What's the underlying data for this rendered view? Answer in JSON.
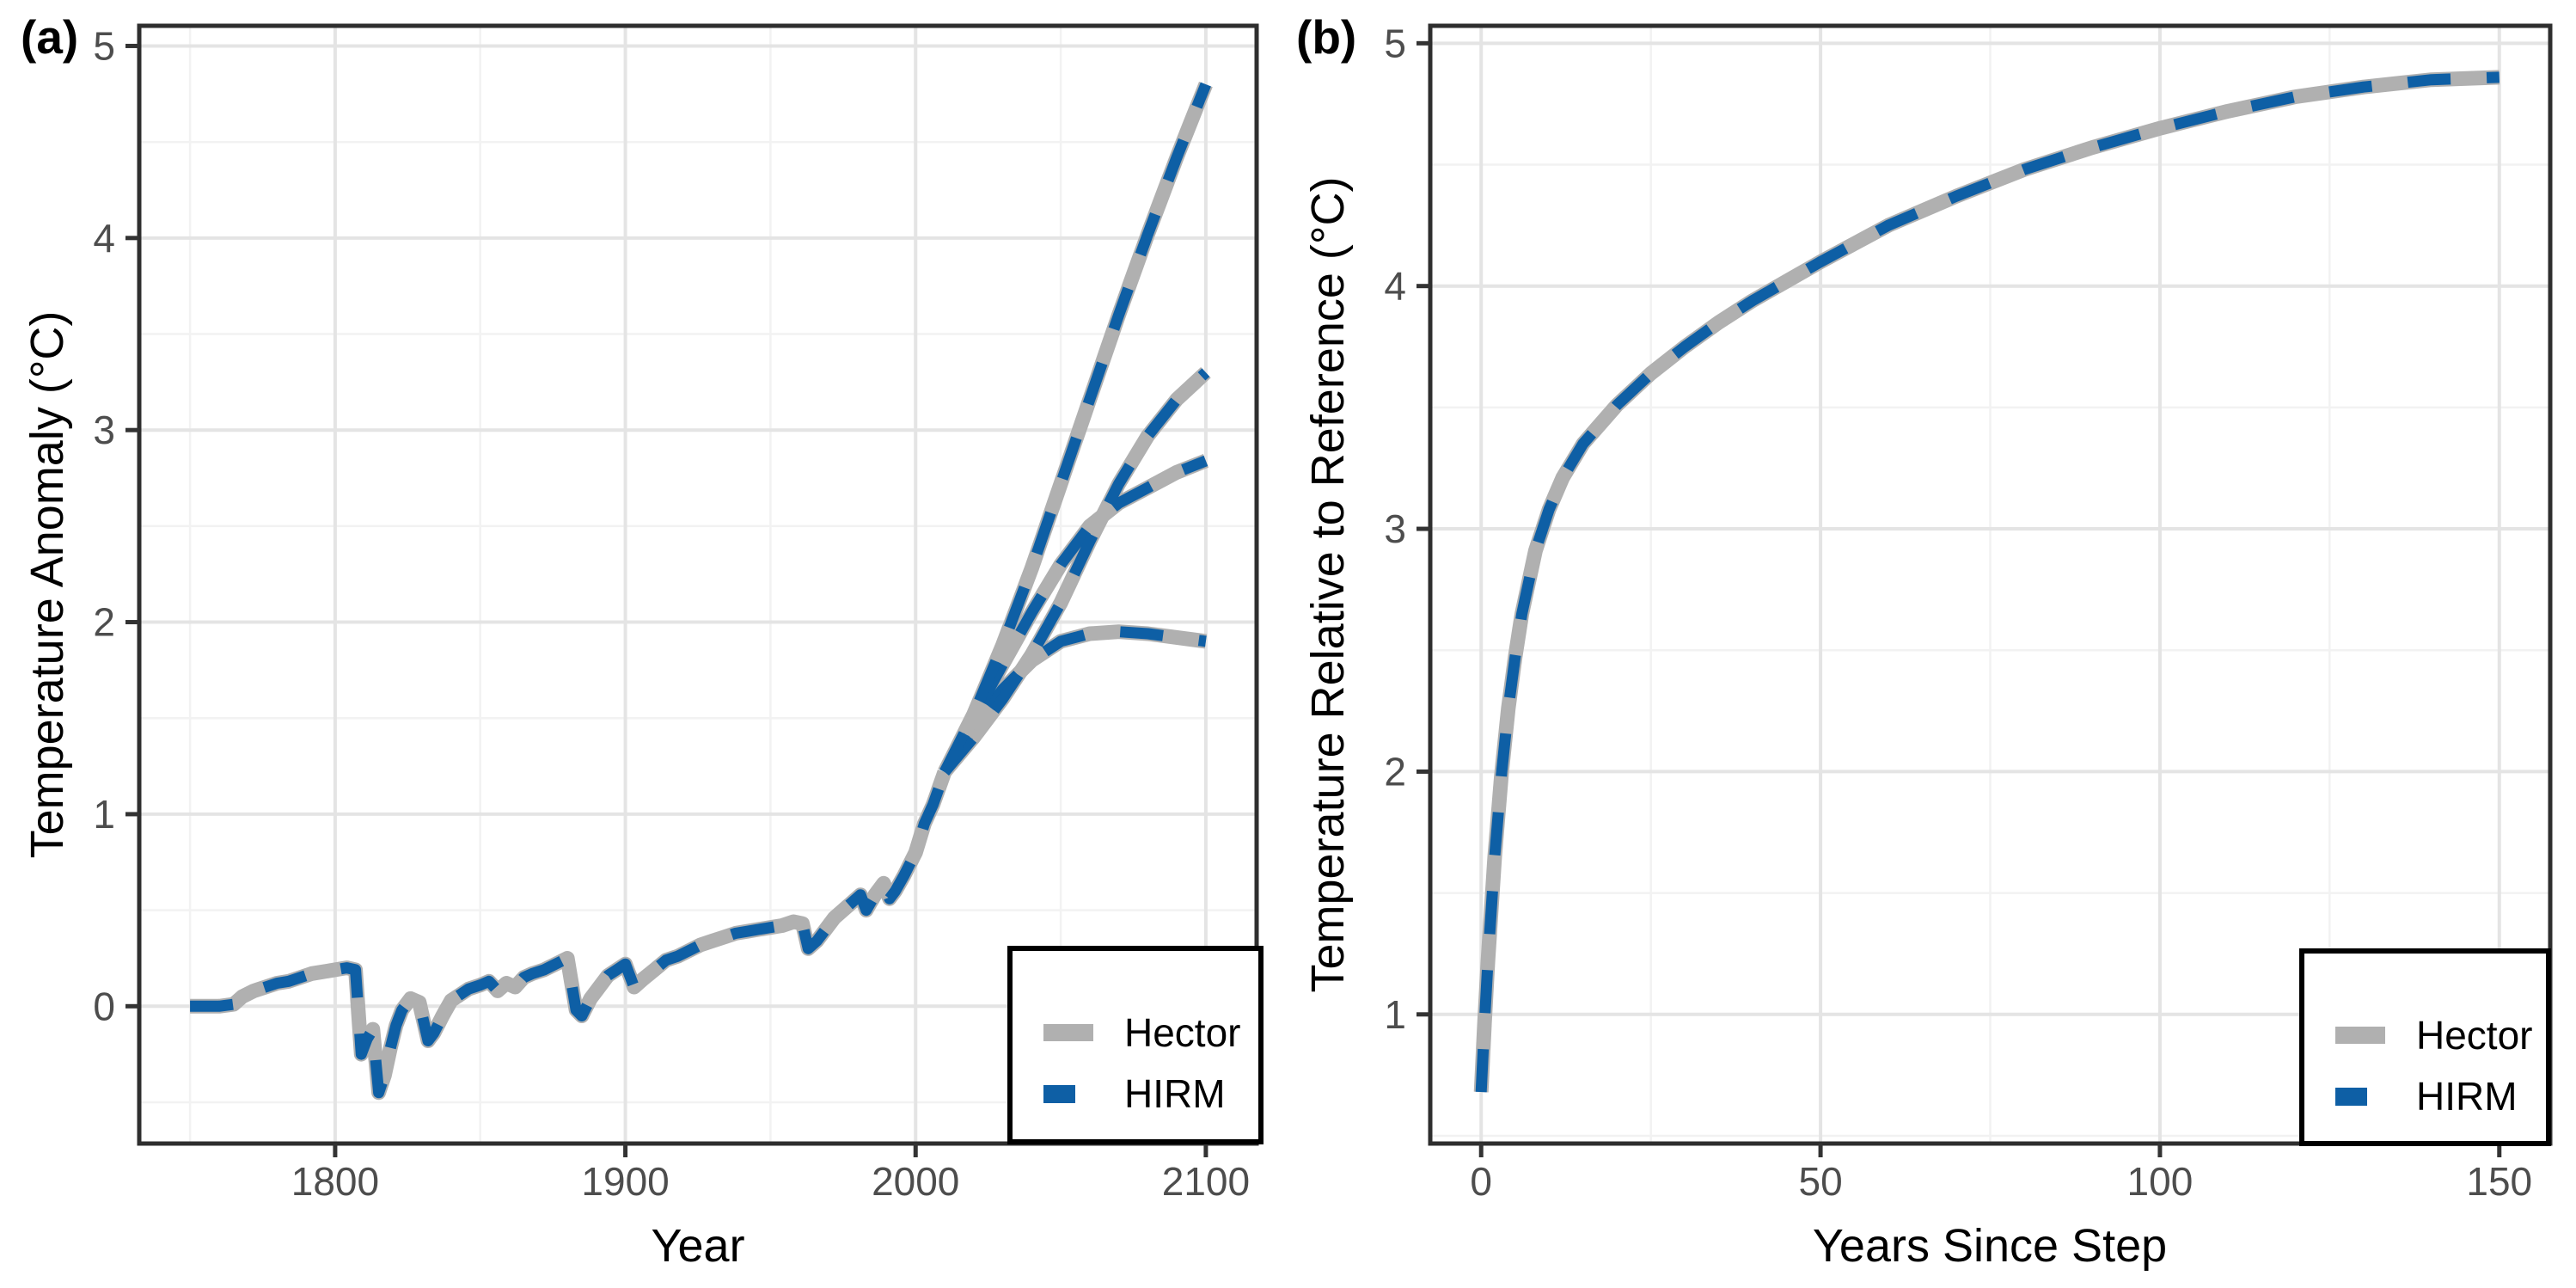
{
  "colors": {
    "background": "#ffffff",
    "hector": "#b0b0b0",
    "hirm": "#0e5fa5",
    "grid_major": "#e4e4e4",
    "grid_minor": "#f2f2f2",
    "panel_border": "#2e2e2e",
    "tick": "#333333",
    "tick_label": "#4d4d4d",
    "axis_title": "#000000",
    "legend_border": "#000000",
    "legend_background": "#ffffff"
  },
  "legend": {
    "items": [
      {
        "label": "Hector",
        "color": "#b0b0b0",
        "style": "solid"
      },
      {
        "label": "HIRM",
        "color": "#0e5fa5",
        "style": "dashed"
      }
    ],
    "position": "bottom-right"
  },
  "chart_data": [
    {
      "type": "line",
      "panel_tag": "(a)",
      "title": "",
      "xlabel": "Year",
      "ylabel": "Temperature Anomaly (°C)",
      "xlim": [
        1732.5,
        2117.5
      ],
      "ylim": [
        -0.715,
        5.105
      ],
      "x_ticks": [
        1800,
        1900,
        2000,
        2100
      ],
      "x_minor": [
        1750,
        1850,
        1950,
        2050
      ],
      "y_ticks": [
        0,
        1,
        2,
        3,
        4,
        5
      ],
      "y_minor": [
        -0.5,
        0.5,
        1.5,
        2.5,
        3.5,
        4.5
      ],
      "grid": true,
      "legend_position": "bottom-right",
      "models": [
        {
          "name": "Hector",
          "style": "solid"
        },
        {
          "name": "HIRM",
          "style": "dashed"
        }
      ],
      "series": [
        {
          "name": "history",
          "x": [
            1750,
            1755,
            1760,
            1765,
            1768,
            1772,
            1776,
            1780,
            1784,
            1788,
            1792,
            1796,
            1800,
            1804,
            1807,
            1809,
            1811,
            1813,
            1815,
            1817,
            1819,
            1821,
            1823,
            1826,
            1829,
            1832,
            1834,
            1837,
            1840,
            1843,
            1846,
            1850,
            1853,
            1856,
            1859,
            1862,
            1865,
            1868,
            1872,
            1876,
            1880,
            1883,
            1885,
            1888,
            1891,
            1894,
            1897,
            1900,
            1903,
            1906,
            1910,
            1914,
            1918,
            1922,
            1926,
            1930,
            1934,
            1938,
            1942,
            1946,
            1950,
            1954,
            1958,
            1961,
            1963,
            1966,
            1969,
            1972,
            1975,
            1978,
            1981,
            1983,
            1986,
            1989,
            1991,
            1993,
            1996,
            2000,
            2003,
            2006,
            2010
          ],
          "y": [
            0,
            0,
            0,
            0.01,
            0.05,
            0.08,
            0.1,
            0.12,
            0.13,
            0.15,
            0.17,
            0.18,
            0.19,
            0.2,
            0.19,
            -0.25,
            -0.17,
            -0.12,
            -0.45,
            -0.36,
            -0.22,
            -0.1,
            -0.02,
            0.04,
            0.02,
            -0.18,
            -0.14,
            -0.05,
            0.03,
            0.06,
            0.09,
            0.11,
            0.13,
            0.08,
            0.12,
            0.1,
            0.15,
            0.17,
            0.19,
            0.22,
            0.25,
            -0.02,
            -0.05,
            0.04,
            0.1,
            0.16,
            0.19,
            0.22,
            0.1,
            0.14,
            0.19,
            0.24,
            0.26,
            0.29,
            0.32,
            0.34,
            0.36,
            0.38,
            0.39,
            0.4,
            0.41,
            0.42,
            0.44,
            0.43,
            0.3,
            0.34,
            0.4,
            0.46,
            0.5,
            0.54,
            0.58,
            0.5,
            0.58,
            0.64,
            0.56,
            0.6,
            0.68,
            0.8,
            0.95,
            1.05,
            1.22
          ]
        },
        {
          "name": "branch_low",
          "x": [
            2010,
            2020,
            2030,
            2040,
            2050,
            2060,
            2070,
            2080,
            2090,
            2100
          ],
          "y": [
            1.22,
            1.45,
            1.65,
            1.8,
            1.9,
            1.94,
            1.95,
            1.94,
            1.92,
            1.9
          ]
        },
        {
          "name": "branch_mid_low",
          "x": [
            2010,
            2020,
            2030,
            2040,
            2050,
            2060,
            2070,
            2080,
            2090,
            2100
          ],
          "y": [
            1.22,
            1.5,
            1.78,
            2.05,
            2.3,
            2.5,
            2.62,
            2.7,
            2.78,
            2.84
          ]
        },
        {
          "name": "branch_mid_high",
          "x": [
            2010,
            2020,
            2030,
            2040,
            2050,
            2060,
            2070,
            2080,
            2090,
            2100
          ],
          "y": [
            1.22,
            1.4,
            1.6,
            1.83,
            2.1,
            2.42,
            2.72,
            2.97,
            3.16,
            3.3
          ]
        },
        {
          "name": "branch_high",
          "x": [
            2010,
            2020,
            2030,
            2040,
            2050,
            2060,
            2070,
            2080,
            2090,
            2100
          ],
          "y": [
            1.22,
            1.52,
            1.88,
            2.28,
            2.72,
            3.16,
            3.6,
            4.02,
            4.42,
            4.8
          ]
        }
      ]
    },
    {
      "type": "line",
      "panel_tag": "(b)",
      "title": "",
      "xlabel": "Years Since Step",
      "ylabel": "Temperature Relative to Reference (°C)",
      "xlim": [
        -7.5,
        157.5
      ],
      "ylim": [
        0.468,
        5.072
      ],
      "x_ticks": [
        0,
        50,
        100,
        150
      ],
      "x_minor": [
        25,
        75,
        125
      ],
      "y_ticks": [
        1,
        2,
        3,
        4,
        5
      ],
      "y_minor": [
        0.5,
        1.5,
        2.5,
        3.5,
        4.5
      ],
      "grid": true,
      "legend_position": "bottom-right",
      "models": [
        {
          "name": "Hector",
          "style": "solid"
        },
        {
          "name": "HIRM",
          "style": "dashed"
        }
      ],
      "series": [
        {
          "name": "step_response",
          "x": [
            0,
            0.5,
            1,
            2,
            3,
            4,
            5,
            6,
            8,
            10,
            12,
            15,
            20,
            25,
            30,
            35,
            40,
            50,
            60,
            70,
            80,
            90,
            100,
            110,
            120,
            130,
            140,
            150
          ],
          "y": [
            0.68,
            0.97,
            1.22,
            1.65,
            1.99,
            2.26,
            2.47,
            2.65,
            2.91,
            3.08,
            3.21,
            3.35,
            3.51,
            3.64,
            3.75,
            3.85,
            3.94,
            4.1,
            4.25,
            4.37,
            4.48,
            4.57,
            4.65,
            4.72,
            4.78,
            4.82,
            4.85,
            4.86
          ]
        }
      ]
    }
  ]
}
